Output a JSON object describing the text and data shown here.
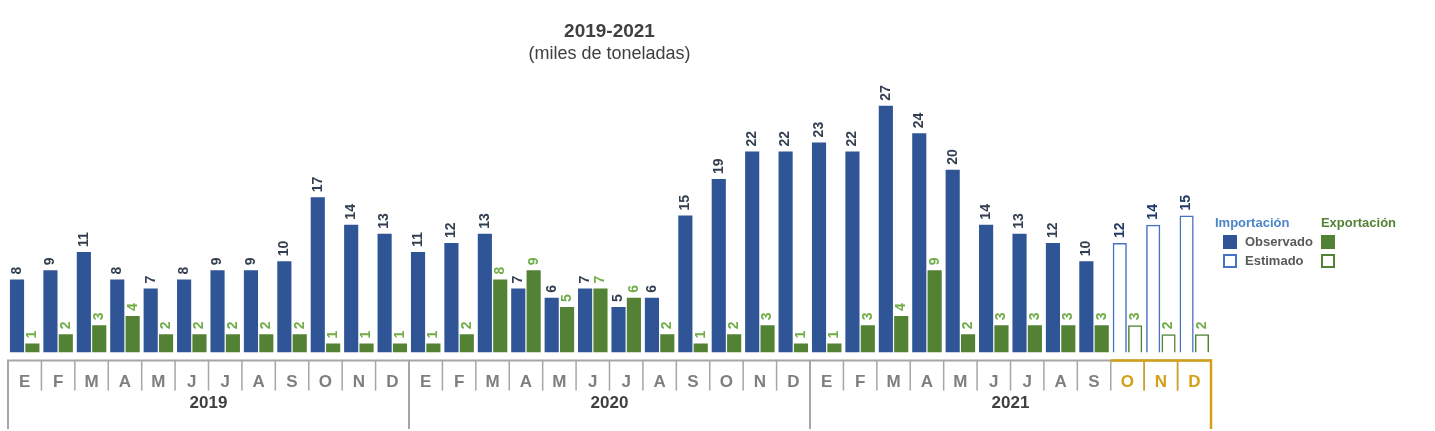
{
  "chart_data": {
    "type": "bar",
    "title": "2019-2021",
    "subtitle": "(miles de toneladas)",
    "categories": [
      "E",
      "F",
      "M",
      "A",
      "M",
      "J",
      "J",
      "A",
      "S",
      "O",
      "N",
      "D",
      "E",
      "F",
      "M",
      "A",
      "M",
      "J",
      "J",
      "A",
      "S",
      "O",
      "N",
      "D",
      "E",
      "F",
      "M",
      "A",
      "M",
      "J",
      "J",
      "A",
      "S",
      "O",
      "N",
      "D"
    ],
    "series": [
      {
        "name": "Observado",
        "color": "#2f5597",
        "values": [
          8,
          9,
          11,
          8,
          7,
          8,
          9,
          9,
          10,
          17,
          14,
          13,
          11,
          12,
          13,
          7,
          6,
          7,
          5,
          6,
          15,
          19,
          22,
          22,
          23,
          22,
          27,
          24,
          20,
          14,
          13,
          12,
          10,
          null,
          null,
          null
        ]
      },
      {
        "name": "Estimado",
        "line_style": "solid",
        "color": "#4472c4",
        "values": [
          null,
          null,
          null,
          null,
          null,
          null,
          null,
          null,
          null,
          null,
          null,
          null,
          null,
          null,
          null,
          null,
          null,
          null,
          null,
          null,
          null,
          null,
          null,
          null,
          null,
          null,
          null,
          null,
          null,
          null,
          null,
          null,
          null,
          12,
          14,
          15
        ]
      },
      {
        "color": "#548235",
        "values": [
          1,
          2,
          3,
          4,
          2,
          2,
          2,
          2,
          2,
          1,
          1,
          1,
          1,
          2,
          8,
          9,
          5,
          7,
          6,
          2,
          1,
          2,
          3,
          1,
          1,
          3,
          4,
          9,
          2,
          3,
          3,
          3,
          3,
          null,
          null,
          null
        ]
      },
      {
        "line_style": "solid",
        "color": "#548235",
        "values": [
          null,
          null,
          null,
          null,
          null,
          null,
          null,
          null,
          null,
          null,
          null,
          null,
          null,
          null,
          null,
          null,
          null,
          null,
          null,
          null,
          null,
          null,
          null,
          null,
          null,
          null,
          null,
          null,
          null,
          null,
          null,
          null,
          null,
          3,
          2,
          2
        ]
      }
    ],
    "annotations": [
      "2019",
      "2020",
      "2021",
      "Importación",
      "Exportación"
    ],
    "data_labels": true,
    "legend": "right"
  }
}
